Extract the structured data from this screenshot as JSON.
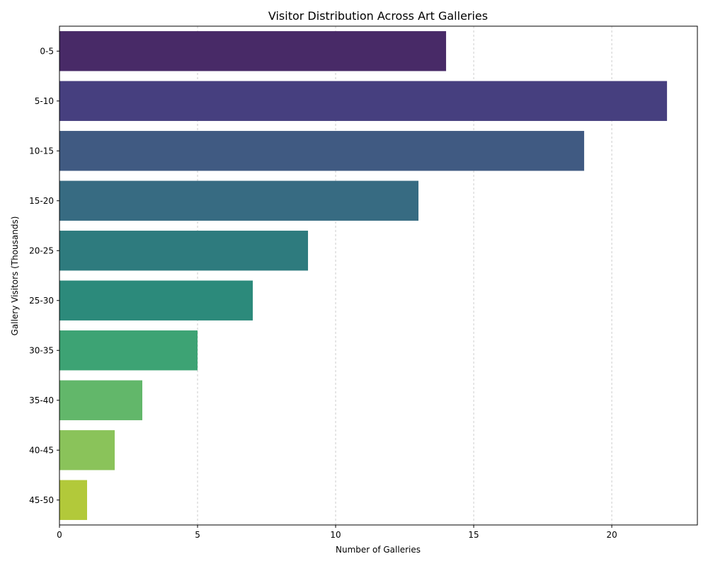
{
  "chart_data": {
    "type": "bar",
    "orientation": "horizontal",
    "title": "Visitor Distribution Across Art Galleries",
    "xlabel": "Number of Galleries",
    "ylabel": "Gallery Visitors (Thousands)",
    "categories": [
      "0-5",
      "5-10",
      "10-15",
      "15-20",
      "20-25",
      "25-30",
      "30-35",
      "35-40",
      "40-45",
      "45-50"
    ],
    "values": [
      14,
      22,
      19,
      13,
      9,
      7,
      5,
      3,
      2,
      1
    ],
    "colors": [
      "#482a67",
      "#463f7f",
      "#405a82",
      "#376b82",
      "#2e7b7e",
      "#2c8a7b",
      "#3da374",
      "#62b76a",
      "#8ac35a",
      "#b2c93a"
    ],
    "xlim": [
      0,
      23.1
    ],
    "xticks": [
      0,
      5,
      10,
      15,
      20
    ],
    "grid": {
      "x": true,
      "y": false
    }
  }
}
